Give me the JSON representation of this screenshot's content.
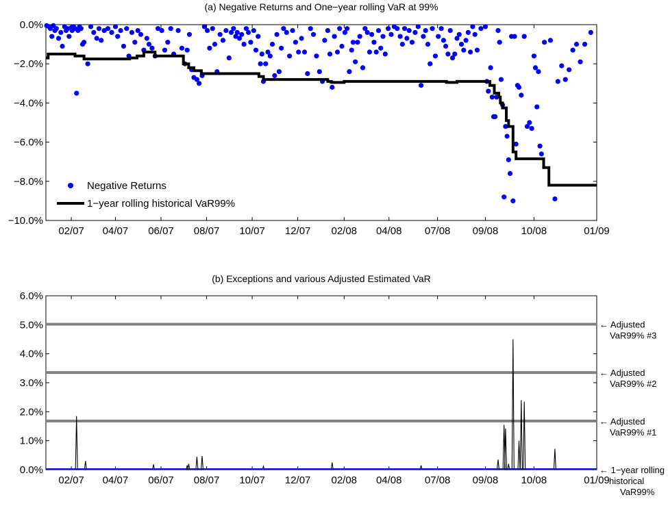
{
  "chart_data": [
    {
      "type": "scatter",
      "title": "(a) Negative Returns and One−year rolling VaR at 99%",
      "xlabel": "",
      "ylabel": "",
      "xlim": [
        "2006-12-29",
        "2009-01-04"
      ],
      "ylim": [
        -10.0,
        0.0
      ],
      "y_unit": "%",
      "x_tick_labels": [
        "02/07",
        "04/07",
        "06/07",
        "08/07",
        "10/07",
        "12/07",
        "02/08",
        "04/08",
        "07/08",
        "09/08",
        "10/08",
        "01/09"
      ],
      "x_tick_dates": [
        "2007-02-01",
        "2007-04-01",
        "2007-06-01",
        "2007-08-01",
        "2007-10-01",
        "2007-12-01",
        "2008-02-01",
        "2008-04-01",
        "2008-06-05",
        "2008-08-08",
        "2008-10-12",
        "2009-01-04"
      ],
      "y_ticks": [
        0,
        -2,
        -4,
        -6,
        -8,
        -10
      ],
      "y_tick_labels": [
        "0.0%",
        "−2.0%",
        "−4.0%",
        "−6.0%",
        "−8.0%",
        "−10.0%"
      ],
      "grid": false,
      "legend_position": "bottom-left",
      "colors": {
        "returns": "#0000ff",
        "var": "#000000"
      },
      "legend": {
        "returns": "Negative Returns",
        "var": "1−year rolling historical VaR99%"
      },
      "returns_points": [
        [
          "2006-12-30",
          -0.05
        ],
        [
          "2007-01-02",
          -0.1
        ],
        [
          "2007-01-04",
          -0.2
        ],
        [
          "2007-01-06",
          -0.6
        ],
        [
          "2007-01-08",
          -0.05
        ],
        [
          "2007-01-10",
          -0.3
        ],
        [
          "2007-01-12",
          -0.2
        ],
        [
          "2007-01-15",
          -0.7
        ],
        [
          "2007-01-18",
          -0.4
        ],
        [
          "2007-01-20",
          -1.1
        ],
        [
          "2007-01-23",
          -0.1
        ],
        [
          "2007-01-25",
          -0.3
        ],
        [
          "2007-01-27",
          -0.2
        ],
        [
          "2007-01-29",
          -0.6
        ],
        [
          "2007-02-01",
          -0.15
        ],
        [
          "2007-02-02",
          -0.3
        ],
        [
          "2007-02-04",
          -0.1
        ],
        [
          "2007-02-06",
          -0.2
        ],
        [
          "2007-02-08",
          -3.5
        ],
        [
          "2007-02-10",
          -0.3
        ],
        [
          "2007-02-12",
          -0.1
        ],
        [
          "2007-02-14",
          -0.2
        ],
        [
          "2007-02-16",
          -1.0
        ],
        [
          "2007-02-18",
          -0.9
        ],
        [
          "2007-02-23",
          -2.0
        ],
        [
          "2007-02-27",
          -0.1
        ],
        [
          "2007-03-03",
          -0.4
        ],
        [
          "2007-03-07",
          -0.7
        ],
        [
          "2007-03-10",
          -0.2
        ],
        [
          "2007-03-13",
          -0.8
        ],
        [
          "2007-03-17",
          -0.3
        ],
        [
          "2007-03-22",
          -0.2
        ],
        [
          "2007-03-27",
          -0.4
        ],
        [
          "2007-04-01",
          -0.1
        ],
        [
          "2007-04-04",
          -0.6
        ],
        [
          "2007-04-08",
          -0.3
        ],
        [
          "2007-04-12",
          -1.1
        ],
        [
          "2007-04-16",
          -0.2
        ],
        [
          "2007-04-19",
          -1.6
        ],
        [
          "2007-04-23",
          -0.4
        ],
        [
          "2007-04-27",
          -0.9
        ],
        [
          "2007-05-01",
          -0.3
        ],
        [
          "2007-05-05",
          -0.5
        ],
        [
          "2007-05-09",
          -1.3
        ],
        [
          "2007-05-13",
          -0.7
        ],
        [
          "2007-05-16",
          -1.0
        ],
        [
          "2007-05-20",
          -1.2
        ],
        [
          "2007-05-24",
          -1.6
        ],
        [
          "2007-05-28",
          -0.2
        ],
        [
          "2007-06-02",
          -0.3
        ],
        [
          "2007-06-06",
          -1.3
        ],
        [
          "2007-06-10",
          -0.9
        ],
        [
          "2007-06-14",
          -0.2
        ],
        [
          "2007-06-18",
          -1.5
        ],
        [
          "2007-06-24",
          -0.3
        ],
        [
          "2007-06-29",
          -1.2
        ],
        [
          "2007-07-03",
          -2.0
        ],
        [
          "2007-07-06",
          -1.3
        ],
        [
          "2007-07-09",
          -0.5
        ],
        [
          "2007-07-12",
          -2.3
        ],
        [
          "2007-07-15",
          -2.7
        ],
        [
          "2007-07-19",
          -2.8
        ],
        [
          "2007-07-22",
          -3.0
        ],
        [
          "2007-07-26",
          -2.6
        ],
        [
          "2007-07-29",
          -0.1
        ],
        [
          "2007-08-02",
          -0.3
        ],
        [
          "2007-08-05",
          -1.2
        ],
        [
          "2007-08-09",
          -0.2
        ],
        [
          "2007-08-12",
          -1.0
        ],
        [
          "2007-08-15",
          -2.4
        ],
        [
          "2007-08-19",
          -0.5
        ],
        [
          "2007-08-23",
          -0.8
        ],
        [
          "2007-08-27",
          -0.3
        ],
        [
          "2007-08-31",
          -1.7
        ],
        [
          "2007-09-03",
          -0.4
        ],
        [
          "2007-09-06",
          -0.2
        ],
        [
          "2007-09-09",
          -0.6
        ],
        [
          "2007-09-11",
          -0.4
        ],
        [
          "2007-09-14",
          -0.7
        ],
        [
          "2007-09-17",
          -0.5
        ],
        [
          "2007-09-20",
          -1.0
        ],
        [
          "2007-09-23",
          -0.2
        ],
        [
          "2007-09-26",
          -0.4
        ],
        [
          "2007-09-29",
          -0.9
        ],
        [
          "2007-10-03",
          -0.3
        ],
        [
          "2007-10-06",
          -1.3
        ],
        [
          "2007-10-09",
          -0.6
        ],
        [
          "2007-10-12",
          -2.0
        ],
        [
          "2007-10-14",
          -1.5
        ],
        [
          "2007-10-16",
          -2.9
        ],
        [
          "2007-10-19",
          -2.0
        ],
        [
          "2007-10-22",
          -1.4
        ],
        [
          "2007-10-25",
          -1.6
        ],
        [
          "2007-10-28",
          -1.0
        ],
        [
          "2007-10-31",
          -2.6
        ],
        [
          "2007-11-03",
          -0.5
        ],
        [
          "2007-11-06",
          -2.4
        ],
        [
          "2007-11-09",
          -1.2
        ],
        [
          "2007-11-12",
          -0.2
        ],
        [
          "2007-11-16",
          -0.4
        ],
        [
          "2007-11-20",
          -1.6
        ],
        [
          "2007-11-24",
          -0.3
        ],
        [
          "2007-11-28",
          -0.9
        ],
        [
          "2007-12-02",
          -1.4
        ],
        [
          "2007-12-06",
          -0.7
        ],
        [
          "2007-12-10",
          -1.4
        ],
        [
          "2007-12-14",
          -2.5
        ],
        [
          "2007-12-18",
          -0.2
        ],
        [
          "2007-12-22",
          -0.5
        ],
        [
          "2007-12-26",
          -1.6
        ],
        [
          "2007-12-30",
          -2.4
        ],
        [
          "2008-01-03",
          -2.9
        ],
        [
          "2008-01-06",
          -0.8
        ],
        [
          "2008-01-10",
          -0.3
        ],
        [
          "2008-01-13",
          -1.5
        ],
        [
          "2008-01-16",
          -3.2
        ],
        [
          "2008-01-19",
          -0.6
        ],
        [
          "2008-01-23",
          -1.4
        ],
        [
          "2008-01-26",
          -0.2
        ],
        [
          "2008-01-29",
          -1.1
        ],
        [
          "2008-02-02",
          -0.4
        ],
        [
          "2008-02-05",
          -0.2
        ],
        [
          "2008-02-08",
          -2.4
        ],
        [
          "2008-02-11",
          -1.3
        ],
        [
          "2008-02-13",
          -0.9
        ],
        [
          "2008-02-16",
          -1.9
        ],
        [
          "2008-02-19",
          -0.9
        ],
        [
          "2008-02-22",
          -0.6
        ],
        [
          "2008-02-26",
          -2.2
        ],
        [
          "2008-02-29",
          -0.2
        ],
        [
          "2008-03-03",
          -0.4
        ],
        [
          "2008-03-06",
          -1.4
        ],
        [
          "2008-03-09",
          -0.5
        ],
        [
          "2008-03-12",
          -0.9
        ],
        [
          "2008-03-15",
          -1.4
        ],
        [
          "2008-03-18",
          -0.3
        ],
        [
          "2008-03-21",
          -1.2
        ],
        [
          "2008-03-24",
          -0.6
        ],
        [
          "2008-03-27",
          -1.5
        ],
        [
          "2008-03-31",
          -0.2
        ],
        [
          "2008-04-04",
          -0.5
        ],
        [
          "2008-04-08",
          -0.1
        ],
        [
          "2008-04-12",
          -0.2
        ],
        [
          "2008-04-16",
          -0.6
        ],
        [
          "2008-04-19",
          -1.0
        ],
        [
          "2008-04-22",
          -0.2
        ],
        [
          "2008-04-25",
          -0.7
        ],
        [
          "2008-04-28",
          -0.3
        ],
        [
          "2008-05-02",
          -0.9
        ],
        [
          "2008-05-06",
          -0.4
        ],
        [
          "2008-05-10",
          -0.1
        ],
        [
          "2008-05-14",
          -3.1
        ],
        [
          "2008-05-17",
          -0.6
        ],
        [
          "2008-05-20",
          -0.3
        ],
        [
          "2008-05-23",
          -1.0
        ],
        [
          "2008-05-26",
          -2.0
        ],
        [
          "2008-05-29",
          -0.2
        ],
        [
          "2008-06-02",
          -1.6
        ],
        [
          "2008-06-06",
          -0.6
        ],
        [
          "2008-06-10",
          -0.2
        ],
        [
          "2008-06-13",
          -0.8
        ],
        [
          "2008-06-16",
          -1.1
        ],
        [
          "2008-06-19",
          -1.5
        ],
        [
          "2008-06-22",
          -0.3
        ],
        [
          "2008-06-25",
          -1.7
        ],
        [
          "2008-06-28",
          -1.5
        ],
        [
          "2008-07-01",
          -0.7
        ],
        [
          "2008-07-04",
          -0.5
        ],
        [
          "2008-07-07",
          -1.0
        ],
        [
          "2008-07-10",
          -1.3
        ],
        [
          "2008-07-13",
          -0.8
        ],
        [
          "2008-07-16",
          -0.4
        ],
        [
          "2008-07-19",
          -1.4
        ],
        [
          "2008-07-22",
          -0.1
        ],
        [
          "2008-07-25",
          -0.5
        ],
        [
          "2008-07-28",
          -1.3
        ],
        [
          "2008-08-02",
          -0.2
        ],
        [
          "2008-08-08",
          -0.1
        ],
        [
          "2008-08-10",
          -2.9
        ],
        [
          "2008-08-12",
          -3.4
        ],
        [
          "2008-08-15",
          -2.2
        ],
        [
          "2008-08-17",
          -3.7
        ],
        [
          "2008-08-19",
          -4.7
        ],
        [
          "2008-08-21",
          -4.7
        ],
        [
          "2008-08-23",
          -3.7
        ],
        [
          "2008-08-25",
          -0.3
        ],
        [
          "2008-08-27",
          -0.9
        ],
        [
          "2008-08-29",
          -2.8
        ],
        [
          "2008-08-31",
          -4.1
        ],
        [
          "2008-09-02",
          -8.8
        ],
        [
          "2008-09-04",
          -5.2
        ],
        [
          "2008-09-06",
          -5.7
        ],
        [
          "2008-09-08",
          -6.9
        ],
        [
          "2008-09-10",
          -7.6
        ],
        [
          "2008-09-12",
          -0.6
        ],
        [
          "2008-09-14",
          -9.0
        ],
        [
          "2008-09-16",
          -0.6
        ],
        [
          "2008-09-18",
          -6.1
        ],
        [
          "2008-09-20",
          -3.1
        ],
        [
          "2008-09-22",
          -3.2
        ],
        [
          "2008-09-25",
          -3.6
        ],
        [
          "2008-09-29",
          -0.6
        ],
        [
          "2008-10-03",
          -5.2
        ],
        [
          "2008-10-06",
          -5.0
        ],
        [
          "2008-10-09",
          -5.3
        ],
        [
          "2008-10-12",
          -1.6
        ],
        [
          "2008-10-14",
          -2.2
        ],
        [
          "2008-10-16",
          -4.2
        ],
        [
          "2008-10-18",
          -2.4
        ],
        [
          "2008-10-20",
          -6.2
        ],
        [
          "2008-10-22",
          -6.6
        ],
        [
          "2008-10-26",
          -0.9
        ],
        [
          "2008-11-03",
          -0.8
        ],
        [
          "2008-11-09",
          -8.9
        ],
        [
          "2008-11-13",
          -2.9
        ],
        [
          "2008-11-18",
          -2.1
        ],
        [
          "2008-11-23",
          -2.8
        ],
        [
          "2008-11-28",
          -2.3
        ],
        [
          "2008-12-03",
          -1.3
        ],
        [
          "2008-12-08",
          -1.0
        ],
        [
          "2008-12-13",
          -1.9
        ],
        [
          "2008-12-19",
          -1.0
        ],
        [
          "2008-12-27",
          -0.4
        ]
      ],
      "var_steps": [
        [
          "2006-12-29",
          -1.7
        ],
        [
          "2007-01-01",
          -1.5
        ],
        [
          "2007-02-06",
          -1.6
        ],
        [
          "2007-02-18",
          -1.75
        ],
        [
          "2007-04-20",
          -1.7
        ],
        [
          "2007-04-30",
          -1.6
        ],
        [
          "2007-05-09",
          -1.4
        ],
        [
          "2007-05-24",
          -1.6
        ],
        [
          "2007-06-25",
          -1.6
        ],
        [
          "2007-07-01",
          -2.0
        ],
        [
          "2007-07-08",
          -2.2
        ],
        [
          "2007-07-15",
          -2.35
        ],
        [
          "2007-07-25",
          -2.5
        ],
        [
          "2007-10-10",
          -2.65
        ],
        [
          "2007-10-16",
          -2.8
        ],
        [
          "2008-01-10",
          -2.9
        ],
        [
          "2008-01-15",
          -2.95
        ],
        [
          "2008-02-01",
          -2.9
        ],
        [
          "2008-06-17",
          -2.95
        ],
        [
          "2008-07-01",
          -2.9
        ],
        [
          "2008-08-14",
          -3.1
        ],
        [
          "2008-08-20",
          -3.5
        ],
        [
          "2008-08-26",
          -3.7
        ],
        [
          "2008-08-28",
          -4.0
        ],
        [
          "2008-08-31",
          -4.25
        ],
        [
          "2008-09-05",
          -4.9
        ],
        [
          "2008-09-08",
          -5.2
        ],
        [
          "2008-09-14",
          -6.5
        ],
        [
          "2008-09-18",
          -6.85
        ],
        [
          "2008-10-25",
          -7.3
        ],
        [
          "2008-11-01",
          -8.2
        ],
        [
          "2009-01-04",
          -8.2
        ]
      ]
    },
    {
      "type": "line",
      "title": "(b) Exceptions and various Adjusted Estimated VaR",
      "xlabel": "",
      "ylabel": "",
      "xlim": [
        "2006-12-29",
        "2009-01-04"
      ],
      "ylim": [
        0.0,
        6.0
      ],
      "y_unit": "%",
      "x_tick_labels": [
        "02/07",
        "04/07",
        "06/07",
        "08/07",
        "10/07",
        "12/07",
        "02/08",
        "04/08",
        "07/08",
        "09/08",
        "10/08",
        "01/09"
      ],
      "x_tick_dates": [
        "2007-02-01",
        "2007-04-01",
        "2007-06-01",
        "2007-08-01",
        "2007-10-01",
        "2007-12-01",
        "2008-02-01",
        "2008-04-01",
        "2008-06-05",
        "2008-08-08",
        "2008-10-12",
        "2009-01-04"
      ],
      "y_ticks": [
        0,
        1,
        2,
        3,
        4,
        5,
        6
      ],
      "y_tick_labels": [
        "0.0%",
        "1.0%",
        "2.0%",
        "3.0%",
        "4.0%",
        "5.0%",
        "6.0%"
      ],
      "grid": false,
      "colors": {
        "exceptions": "#000000",
        "adjusted": "#808080",
        "base": "#0000ff"
      },
      "exceptions": [
        [
          "2007-02-08",
          1.85
        ],
        [
          "2007-02-20",
          0.3
        ],
        [
          "2007-05-22",
          0.18
        ],
        [
          "2007-07-06",
          0.15
        ],
        [
          "2007-07-08",
          0.2
        ],
        [
          "2007-07-19",
          0.45
        ],
        [
          "2007-07-26",
          0.47
        ],
        [
          "2007-10-16",
          0.12
        ],
        [
          "2008-01-16",
          0.25
        ],
        [
          "2008-05-14",
          0.15
        ],
        [
          "2008-08-25",
          0.35
        ],
        [
          "2008-09-02",
          1.55
        ],
        [
          "2008-09-04",
          1.42
        ],
        [
          "2008-09-08",
          0.2
        ],
        [
          "2008-09-14",
          4.5
        ],
        [
          "2008-09-22",
          1.0
        ],
        [
          "2008-09-25",
          2.4
        ],
        [
          "2008-09-29",
          2.35
        ],
        [
          "2008-11-09",
          0.72
        ]
      ],
      "adjusted_levels": [
        {
          "value": 1.68,
          "label_lines": [
            "← Adjusted",
            "VaR99% #1"
          ]
        },
        {
          "value": 3.35,
          "label_lines": [
            "← Adjusted",
            "VaR99% #2"
          ]
        },
        {
          "value": 5.02,
          "label_lines": [
            "← Adjusted",
            "VaR99% #3"
          ]
        }
      ],
      "base_level": {
        "value": 0.0,
        "label_lines": [
          "← 1−year rolling",
          "historical",
          "VaR99%"
        ]
      }
    }
  ]
}
